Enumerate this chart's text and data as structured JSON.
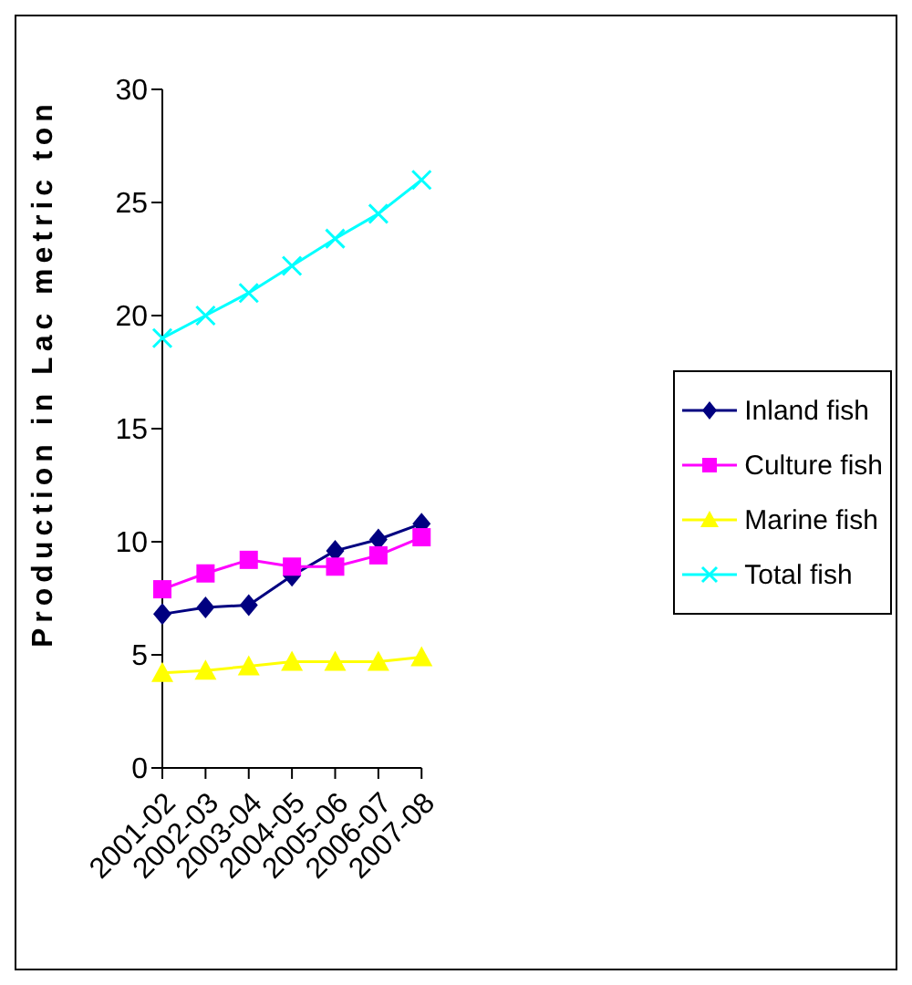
{
  "chart_data": {
    "type": "line",
    "ylabel": "Production in Lac metric ton",
    "categories": [
      "2001-02",
      "2002-03",
      "2003-04",
      "2004-05",
      "2005-06",
      "2006-07",
      "2007-08"
    ],
    "series": [
      {
        "name": "Inland fish",
        "color": "#000080",
        "marker": "diamond",
        "values": [
          6.8,
          7.1,
          7.2,
          8.5,
          9.6,
          10.1,
          10.8
        ]
      },
      {
        "name": "Culture fish",
        "color": "#ff00ff",
        "marker": "square",
        "values": [
          7.9,
          8.6,
          9.2,
          8.9,
          8.9,
          9.4,
          10.2
        ]
      },
      {
        "name": "Marine fish",
        "color": "#ffff00",
        "marker": "triangle",
        "values": [
          4.2,
          4.3,
          4.5,
          4.7,
          4.7,
          4.7,
          4.9
        ]
      },
      {
        "name": "Total fish",
        "color": "#00ffff",
        "marker": "cross",
        "values": [
          19.0,
          20.0,
          21.0,
          22.2,
          23.4,
          24.5,
          26.0
        ]
      }
    ],
    "ylim": [
      0,
      30
    ],
    "yticks": [
      0,
      5,
      10,
      15,
      20,
      25,
      30
    ],
    "grid": false,
    "legend": "right",
    "line_style": "solid"
  }
}
